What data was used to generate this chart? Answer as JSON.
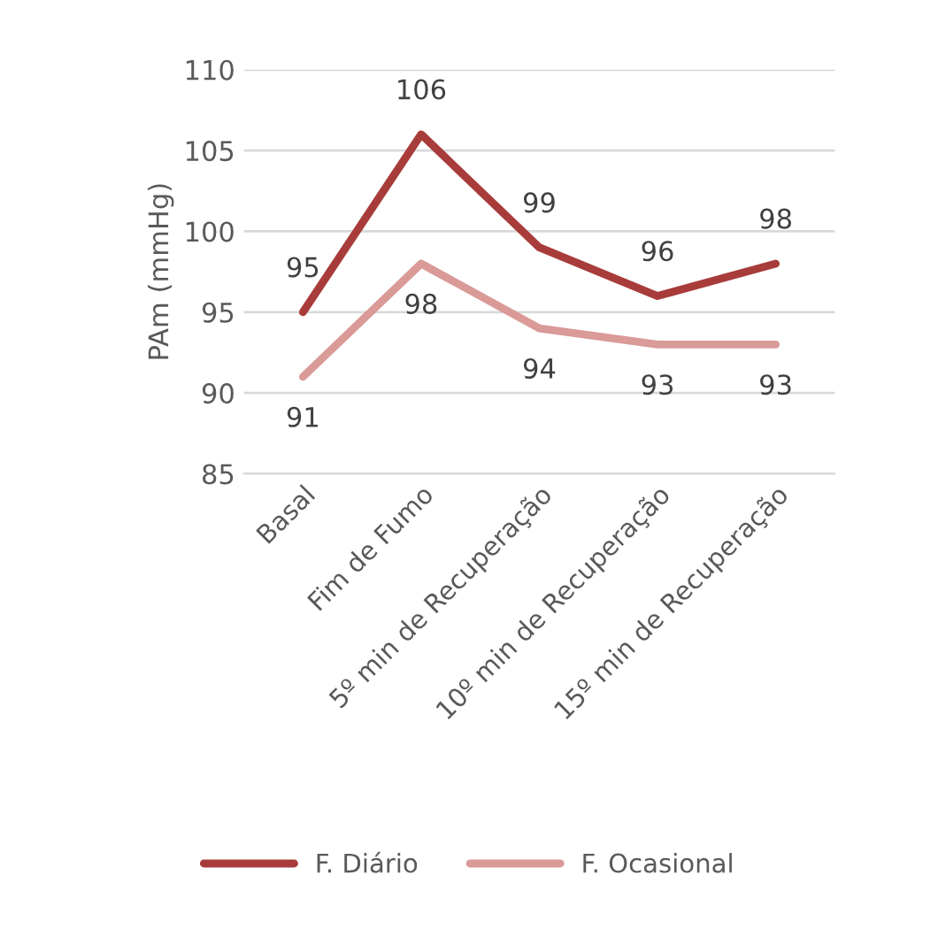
{
  "chart_data": {
    "type": "line",
    "ylabel": "PAm (mmHg)",
    "categories": [
      "Basal",
      "Fim de Fumo",
      "5º min de Recuperação",
      "10º min de Recuperação",
      "15º min de Recuperação"
    ],
    "series": [
      {
        "name": "F. Diário",
        "color": "#a83c3a",
        "values": [
          95,
          106,
          99,
          96,
          98
        ]
      },
      {
        "name": "F. Ocasional",
        "color": "#d99a98",
        "values": [
          91,
          98,
          94,
          93,
          93
        ]
      }
    ],
    "ylim": [
      85,
      110
    ],
    "yticks": [
      85,
      90,
      95,
      100,
      105,
      110
    ],
    "grid": "y",
    "legend": "bottom",
    "data_labels": true,
    "marker": "none",
    "line_style": "solid"
  }
}
